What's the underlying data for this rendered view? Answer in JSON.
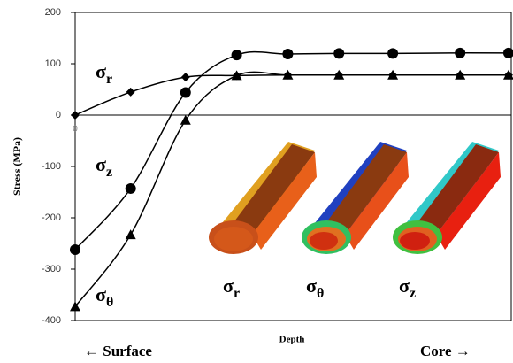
{
  "chart_data": {
    "type": "line",
    "y_label": "Stress (MPa)",
    "x_label": "Depth",
    "x_left_label": "← Surface",
    "x_right_label": "Core →",
    "x": [
      0,
      1.03,
      2.05,
      3.0,
      3.95,
      4.9,
      5.9,
      7.15,
      8.05
    ],
    "xlim": [
      0,
      8.1
    ],
    "xticks": [
      0
    ],
    "ylim": [
      -400,
      200
    ],
    "yticks": [
      -400,
      -300,
      -200,
      -100,
      0,
      100,
      200
    ],
    "series": [
      {
        "name": "σr",
        "color": "#000000",
        "marker": "diamond",
        "values": [
          0,
          45,
          74,
          77,
          78,
          78,
          78,
          78,
          78
        ]
      },
      {
        "name": "σz",
        "color": "#000000",
        "marker": "circle",
        "values": [
          -262,
          -143,
          44,
          117,
          119,
          120,
          120,
          121,
          121
        ]
      },
      {
        "name": "σθ",
        "color": "#000000",
        "marker": "triangle",
        "values": [
          -373,
          -233,
          -10,
          77,
          78,
          78,
          78,
          78,
          78
        ]
      }
    ],
    "inset_labels": [
      "σr",
      "σθ",
      "σz"
    ]
  }
}
